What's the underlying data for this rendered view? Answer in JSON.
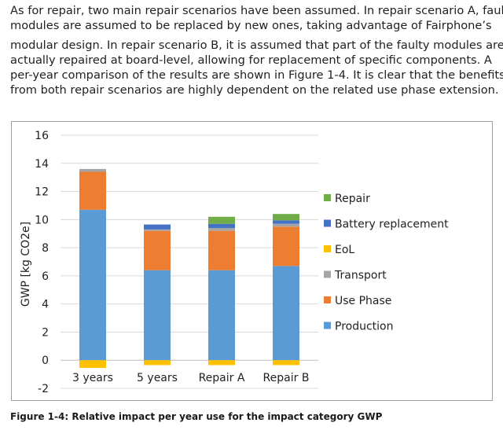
{
  "text": {
    "lines": [
      "As for repair, two main repair scenarios have been assumed. In repair scenario A, faulty",
      "modules are assumed to be replaced by new ones, taking advantage of Fairphone’s",
      "modular design. In repair scenario B, it is assumed that part of the faulty modules are",
      "actually repaired at board-level, allowing for replacement of specific components. A",
      "per-year comparison of the results are shown in Figure 1-4. It is clear that the benefits",
      "from both repair scenarios are highly dependent on the related use phase extension."
    ]
  },
  "caption": "Figure 1-4: Relative impact per year use for the impact category GWP",
  "chart_data": {
    "type": "bar",
    "stacked": true,
    "categories": [
      "3 years",
      "5 years",
      "Repair A",
      "Repair B"
    ],
    "ylabel": "GWP [kg CO2e]",
    "xlabel": "",
    "ylim": [
      -2,
      16
    ],
    "yticks": [
      "16",
      "14",
      "12",
      "10",
      "8",
      "6",
      "4",
      "2",
      "0",
      "-2"
    ],
    "grid": true,
    "legend_position": "right",
    "series": [
      {
        "name": "Production",
        "color": "#5b9bd5",
        "values": [
          10.7,
          6.4,
          6.4,
          6.7
        ]
      },
      {
        "name": "Use Phase",
        "color": "#ed7d31",
        "values": [
          2.7,
          2.8,
          2.8,
          2.8
        ]
      },
      {
        "name": "Transport",
        "color": "#a5a5a5",
        "values": [
          0.2,
          0.1,
          0.2,
          0.2
        ]
      },
      {
        "name": "EoL",
        "color": "#ffc000",
        "values": [
          -0.55,
          -0.35,
          -0.35,
          -0.35
        ]
      },
      {
        "name": "Battery replacement",
        "color": "#4472c4",
        "values": [
          0,
          0.35,
          0.3,
          0.25
        ]
      },
      {
        "name": "Repair",
        "color": "#70ad47",
        "values": [
          0,
          0,
          0.5,
          0.45
        ]
      }
    ],
    "legend_order": [
      "Repair",
      "Battery replacement",
      "EoL",
      "Transport",
      "Use Phase",
      "Production"
    ]
  }
}
